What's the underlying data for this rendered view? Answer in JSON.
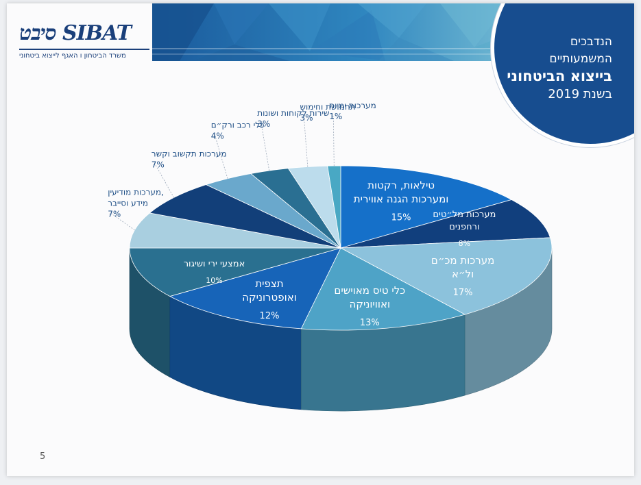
{
  "header": {
    "line1": "הנדבכים",
    "line2": "המשמעותיים",
    "line3": "בייצוא הביטחוני",
    "line4": "בשנת 2019"
  },
  "logo": {
    "text": "סיבט SIBAT",
    "subtitle": "משרד הביטחון ו האגף לייצוא ביטחוני"
  },
  "page_number": "5",
  "colors": {
    "header_circle": "#174d8f",
    "banner_dark": "#1a5a9c",
    "banner_light": "#5fa3c7",
    "label_text": "#1f4f86"
  },
  "chart_data": {
    "type": "pie",
    "style": "3d",
    "start_angle_deg": -90,
    "direction": "clockwise",
    "slices": [
      {
        "label": [
          "טילאות, רקטות",
          "ומערכות הגנה אווירית"
        ],
        "value": 15,
        "value_label": "15%",
        "color": "#1570c9",
        "label_position": "inside"
      },
      {
        "label": [
          "מערכות מל״טים",
          "ורחפנים"
        ],
        "value": 8,
        "value_label": "8%",
        "color": "#113f7d",
        "label_position": "inside"
      },
      {
        "label": [
          "מערכות מכ״ם",
          "ול״א"
        ],
        "value": 17,
        "value_label": "17%",
        "color": "#8cc2dc",
        "label_position": "inside"
      },
      {
        "label": [
          "כלי טיס מאוישים",
          "ואוויוניקה"
        ],
        "value": 13,
        "value_label": "13%",
        "color": "#4ea3c7",
        "label_position": "inside"
      },
      {
        "label": [
          "תצפית",
          "ואופטרוניקה"
        ],
        "value": 12,
        "value_label": "12%",
        "color": "#1764b8",
        "label_position": "inside"
      },
      {
        "label": [
          "אמצעי ירי ושיגור"
        ],
        "value": 10,
        "value_label": "10%",
        "color": "#2a7090",
        "label_position": "inside"
      },
      {
        "label": [
          "מערכות מודיעין,",
          "מידע וסייבר"
        ],
        "value": 7,
        "value_label": "7%",
        "color": "#a9cfe0",
        "label_position": "outside"
      },
      {
        "label": [
          "מערכות תקשוב וקשר"
        ],
        "value": 7,
        "value_label": "7%",
        "color": "#123f79",
        "label_position": "outside"
      },
      {
        "label": [
          "כלי רכב ורק״ם"
        ],
        "value": 4,
        "value_label": "4%",
        "color": "#6aa8cc",
        "label_position": "outside"
      },
      {
        "label": [
          "שירות לקוחות ושונות"
        ],
        "value": 3,
        "value_label": "3%",
        "color": "#2a6f92",
        "label_position": "outside"
      },
      {
        "label": [
          "תחמושת וחימוש"
        ],
        "value": 3,
        "value_label": "3%",
        "color": "#bcdcec",
        "label_position": "outside"
      },
      {
        "label": [
          "מערכות ימיות"
        ],
        "value": 1,
        "value_label": "1%",
        "color": "#49a8c4",
        "label_position": "outside"
      }
    ]
  }
}
